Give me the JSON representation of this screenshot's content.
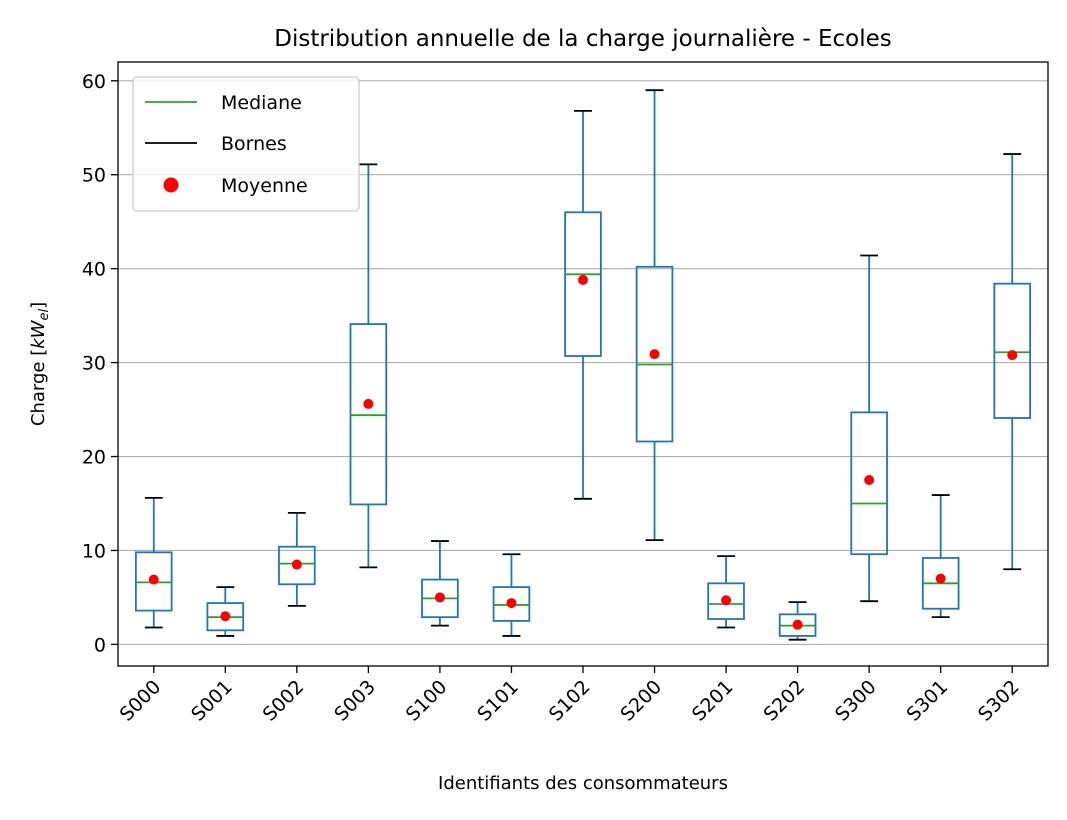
{
  "chart_data": {
    "type": "boxplot",
    "title": "Distribution annuelle de la charge journalière - Ecoles",
    "xlabel": "Identifiants des consommateurs",
    "ylabel_main": "Charge [",
    "ylabel_var": "kW",
    "ylabel_sub": "el",
    "ylabel_end": "]",
    "ylim": [
      -2.3,
      62.0
    ],
    "yticks": [
      0,
      10,
      20,
      30,
      40,
      50,
      60
    ],
    "grid": "horizontal",
    "legend_position": "top-left",
    "legend": [
      {
        "label": "Mediane",
        "kind": "line",
        "color": "#2ca02c"
      },
      {
        "label": "Bornes",
        "kind": "line",
        "color": "#000000"
      },
      {
        "label": "Moyenne",
        "kind": "dot",
        "color": "#ff0000"
      }
    ],
    "colors": {
      "box": "#1f77b4",
      "median": "#2ca02c",
      "mean": "#ff0000",
      "cap": "#000000",
      "grid": "#b0b0b0"
    },
    "categories": [
      "S000",
      "S001",
      "S002",
      "S003",
      "S100",
      "S101",
      "S102",
      "S200",
      "S201",
      "S202",
      "S300",
      "S301",
      "S302"
    ],
    "boxes": [
      {
        "whislo": 1.8,
        "q1": 3.6,
        "med": 6.6,
        "q3": 9.8,
        "whishi": 15.6,
        "mean": 6.9
      },
      {
        "whislo": 0.9,
        "q1": 1.5,
        "med": 2.9,
        "q3": 4.4,
        "whishi": 6.1,
        "mean": 3.0
      },
      {
        "whislo": 4.1,
        "q1": 6.4,
        "med": 8.6,
        "q3": 10.4,
        "whishi": 14.0,
        "mean": 8.5
      },
      {
        "whislo": 8.2,
        "q1": 14.9,
        "med": 24.4,
        "q3": 34.1,
        "whishi": 51.1,
        "mean": 25.6
      },
      {
        "whislo": 2.0,
        "q1": 2.9,
        "med": 4.9,
        "q3": 6.9,
        "whishi": 11.0,
        "mean": 5.0
      },
      {
        "whislo": 0.9,
        "q1": 2.5,
        "med": 4.2,
        "q3": 6.1,
        "whishi": 9.6,
        "mean": 4.4
      },
      {
        "whislo": 15.5,
        "q1": 30.7,
        "med": 39.4,
        "q3": 46.0,
        "whishi": 56.8,
        "mean": 38.8
      },
      {
        "whislo": 11.1,
        "q1": 21.6,
        "med": 29.8,
        "q3": 40.2,
        "whishi": 59.0,
        "mean": 30.9
      },
      {
        "whislo": 1.8,
        "q1": 2.7,
        "med": 4.3,
        "q3": 6.5,
        "whishi": 9.4,
        "mean": 4.7
      },
      {
        "whislo": 0.5,
        "q1": 0.9,
        "med": 2.0,
        "q3": 3.2,
        "whishi": 4.5,
        "mean": 2.1
      },
      {
        "whislo": 4.6,
        "q1": 9.6,
        "med": 15.0,
        "q3": 24.7,
        "whishi": 41.4,
        "mean": 17.5
      },
      {
        "whislo": 2.9,
        "q1": 3.8,
        "med": 6.5,
        "q3": 9.2,
        "whishi": 15.9,
        "mean": 7.0
      },
      {
        "whislo": 8.0,
        "q1": 24.1,
        "med": 31.1,
        "q3": 38.4,
        "whishi": 52.2,
        "mean": 30.8
      }
    ]
  }
}
